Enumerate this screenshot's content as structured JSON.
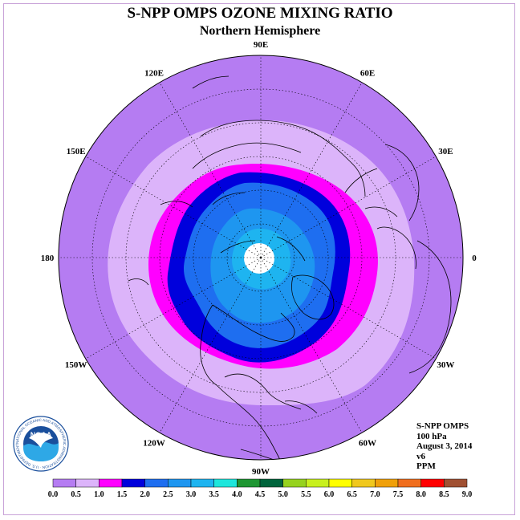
{
  "title": "S-NPP OMPS OZONE MIXING RATIO",
  "subtitle": "Northern Hemisphere",
  "lon_labels": [
    {
      "text": "90E",
      "angle": 90
    },
    {
      "text": "60E",
      "angle": 60
    },
    {
      "text": "30E",
      "angle": 30
    },
    {
      "text": "0",
      "angle": 0
    },
    {
      "text": "30W",
      "angle": -30
    },
    {
      "text": "60W",
      "angle": -60
    },
    {
      "text": "90W",
      "angle": -90
    },
    {
      "text": "120W",
      "angle": -120
    },
    {
      "text": "150W",
      "angle": -150
    },
    {
      "text": "180",
      "angle": 180
    },
    {
      "text": "150E",
      "angle": 150
    },
    {
      "text": "120E",
      "angle": 120
    }
  ],
  "info": {
    "instrument": "S-NPP OMPS",
    "level": "100 hPa",
    "date": "August 3, 2014",
    "version": "v6",
    "units": "PPM"
  },
  "logo": {
    "text": "NOAA",
    "ring_text": "NATIONAL OCEANIC AND ATMOSPHERIC ADMINISTRATION · U.S. DEPARTMENT OF COMMERCE"
  },
  "colorbar": {
    "ticks": [
      "0.0",
      "0.5",
      "1.0",
      "1.5",
      "2.0",
      "2.5",
      "3.0",
      "3.5",
      "4.0",
      "4.5",
      "5.0",
      "5.5",
      "6.0",
      "6.5",
      "7.0",
      "7.5",
      "8.0",
      "8.5",
      "9.0"
    ],
    "colors": [
      "#b57cf2",
      "#dcb4fa",
      "#ff00ff",
      "#0000dc",
      "#1e6ef0",
      "#1e96f0",
      "#1eb4f0",
      "#1ee6dc",
      "#1e9632",
      "#00643c",
      "#96d21e",
      "#c8f01e",
      "#ffff00",
      "#f0c81e",
      "#f0a00a",
      "#f06e1e",
      "#ff0000",
      "#a05032"
    ]
  },
  "colors": {
    "band_0_05": "#b57cf2",
    "band_05_10": "#dcb4fa",
    "band_10_15": "#ff00ff",
    "band_15_20": "#0000dc",
    "band_20_25": "#1e6ef0",
    "band_25_30": "#1e96f0",
    "band_30_35": "#1eb4f0",
    "no_data": "#ffffff"
  }
}
